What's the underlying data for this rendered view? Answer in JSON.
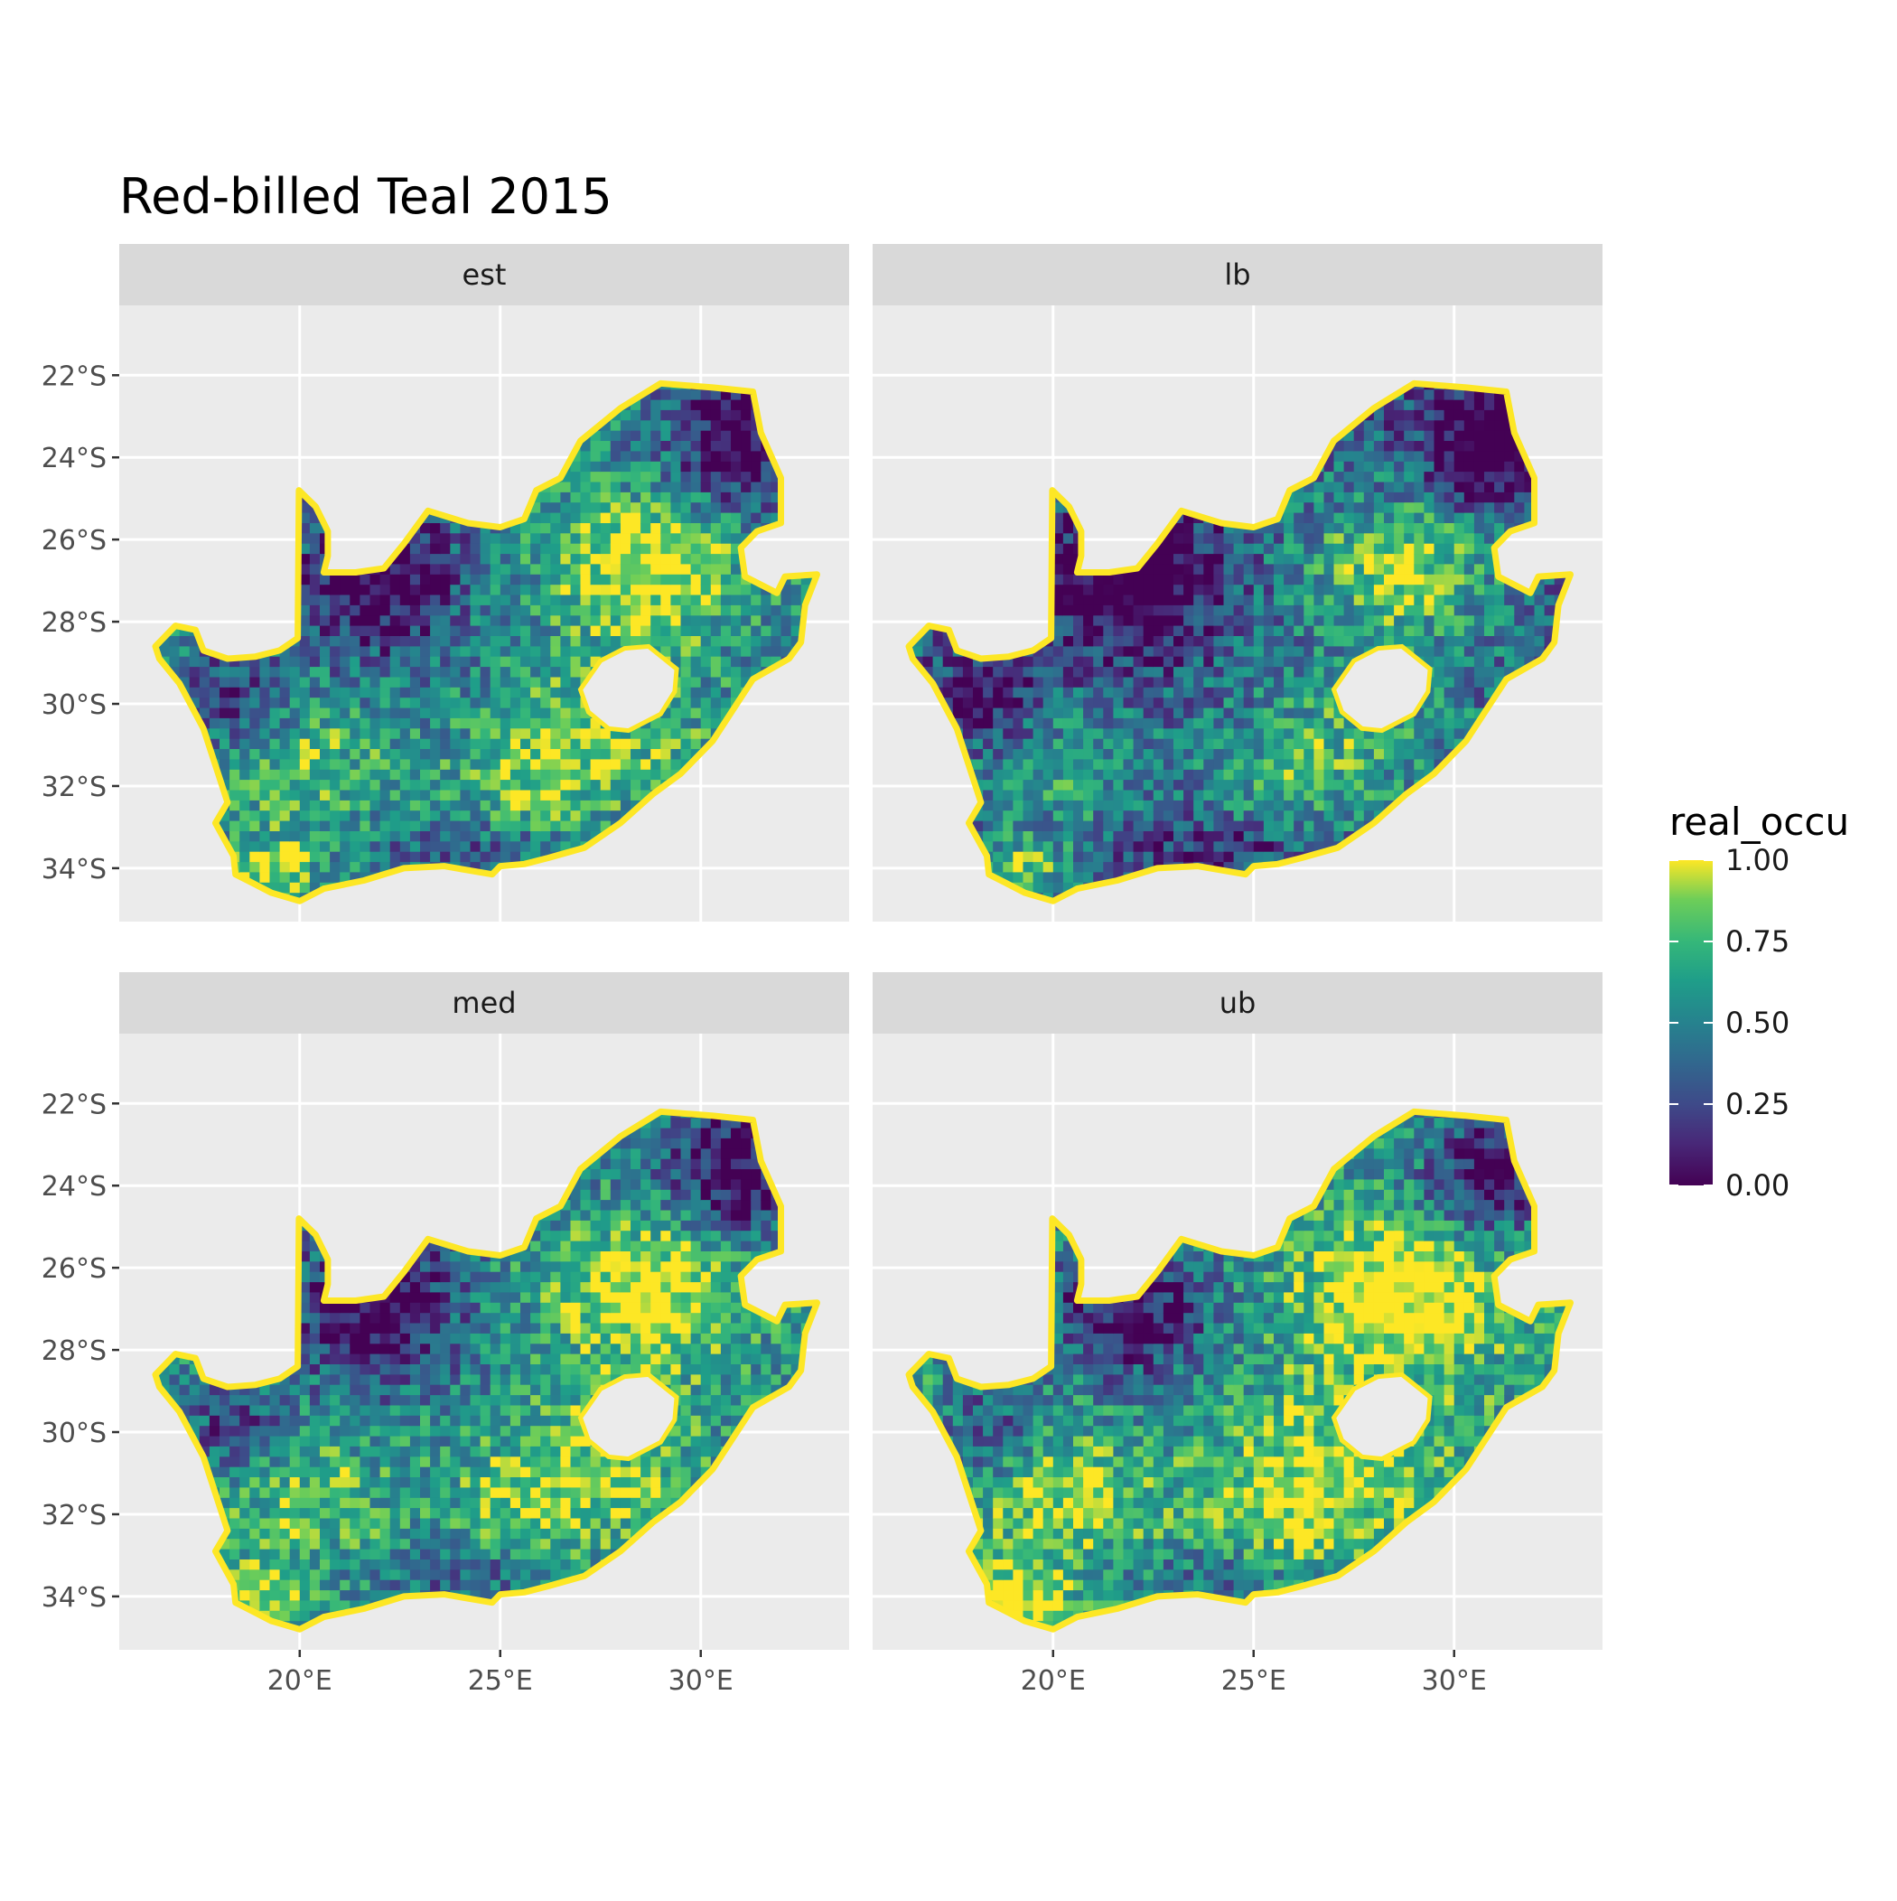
{
  "title": "Red-billed Teal 2015",
  "panels": [
    {
      "label": "est",
      "variant": 0
    },
    {
      "label": "lb",
      "variant": 1
    },
    {
      "label": "med",
      "variant": 2
    },
    {
      "label": "ub",
      "variant": 3
    }
  ],
  "axes": {
    "y_ticks": [
      "22°S",
      "24°S",
      "26°S",
      "28°S",
      "30°S",
      "32°S",
      "34°S"
    ],
    "x_ticks": [
      "20°E",
      "25°E",
      "30°E"
    ],
    "lat_values": [
      -22,
      -24,
      -26,
      -28,
      -30,
      -32,
      -34
    ],
    "lon_values": [
      20,
      25,
      30
    ],
    "lon_range": [
      15.5,
      33.7
    ],
    "lat_range": [
      -35.3,
      -20.3
    ]
  },
  "legend": {
    "title": "real_occu",
    "labels": [
      "1.00",
      "0.75",
      "0.50",
      "0.25",
      "0.00"
    ],
    "values": [
      1.0,
      0.75,
      0.5,
      0.25,
      0.0
    ],
    "colors": [
      "#fde725",
      "#5ec962",
      "#21918c",
      "#3b528b",
      "#440154"
    ]
  },
  "colors": {
    "panel_bg": "#ebebeb",
    "strip_bg": "#d9d9d9",
    "grid": "#ffffff",
    "axis_text": "#4d4d4d",
    "ocean_out": "#ebebeb"
  }
}
